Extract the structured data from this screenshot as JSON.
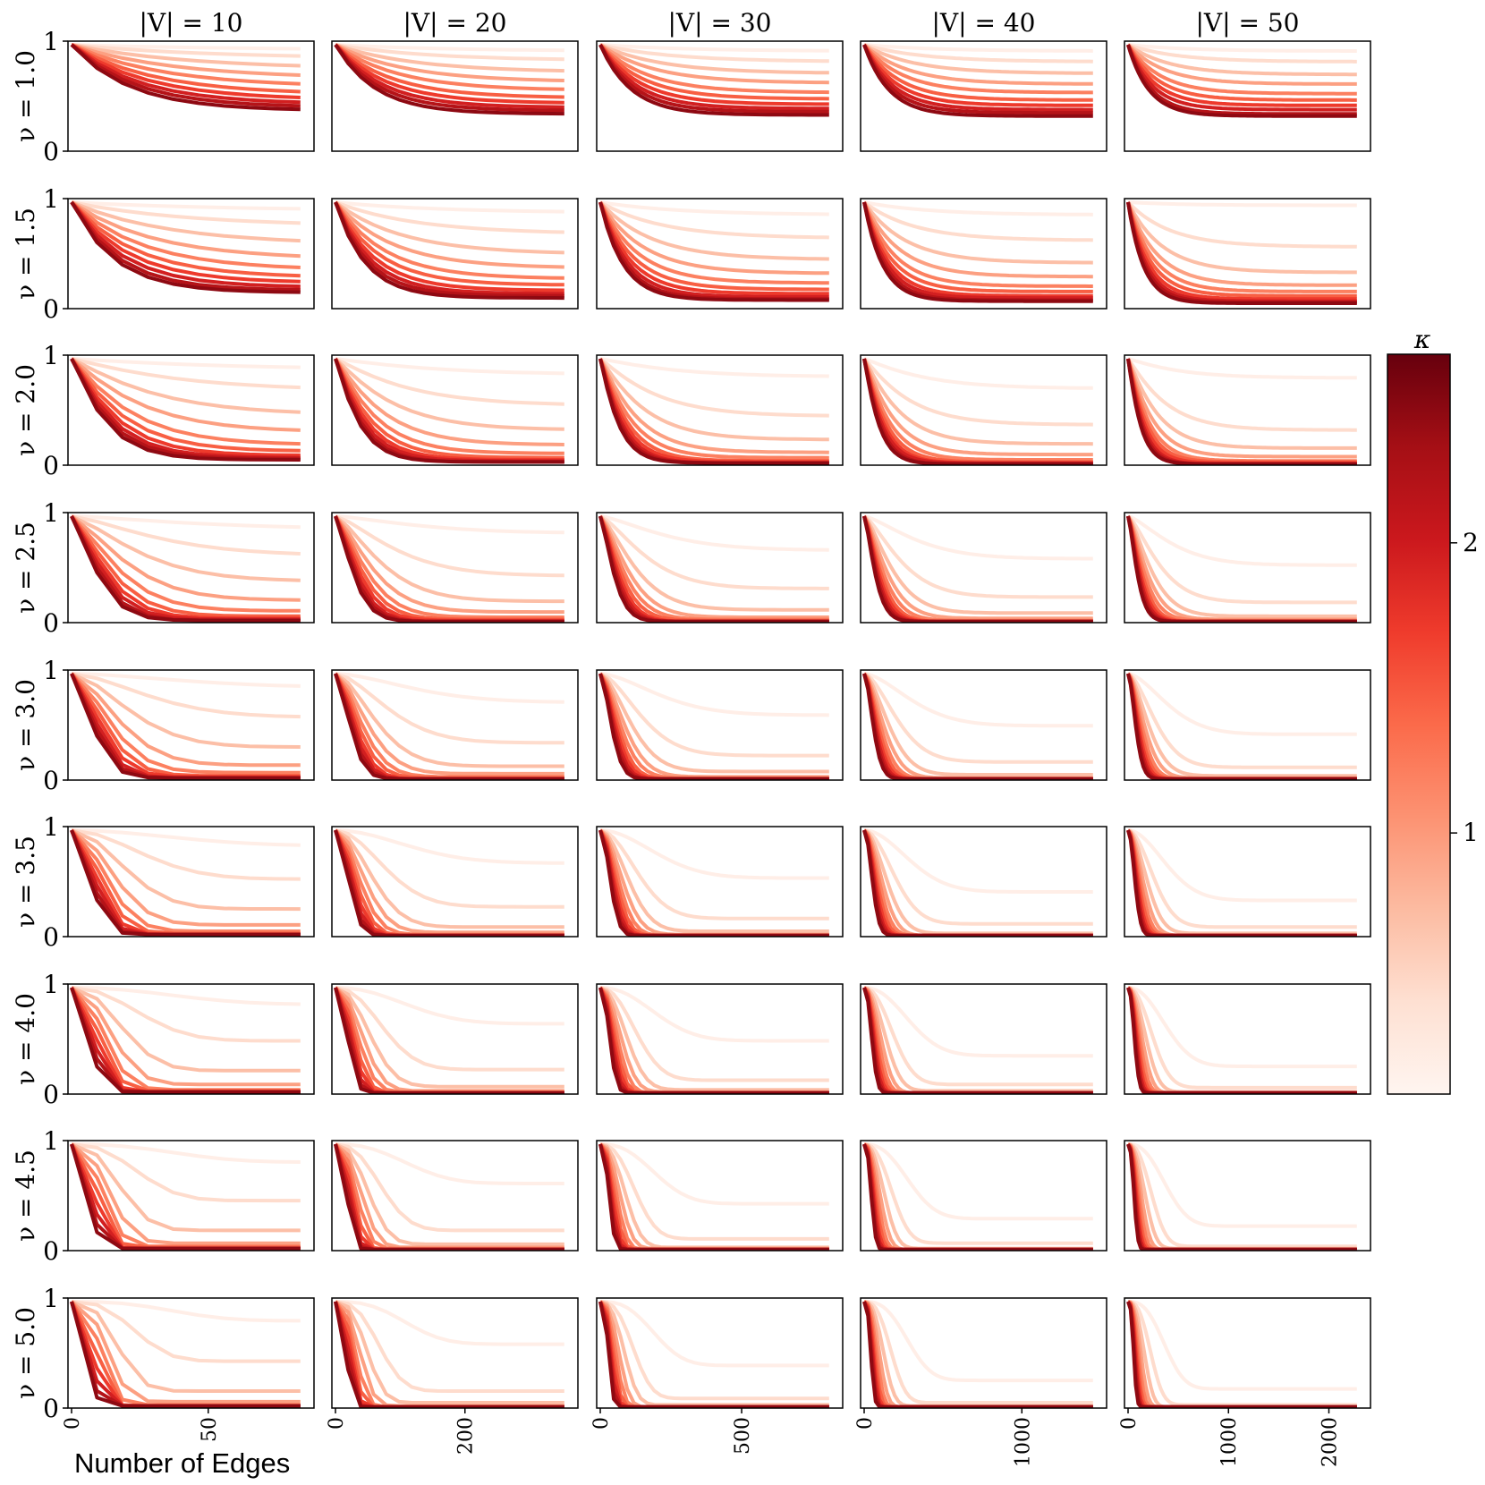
{
  "chart_data": {
    "type": "line",
    "xlabel": "Number of Edges",
    "ylim": [
      0,
      1
    ],
    "y_ticks": [
      "0",
      "1"
    ],
    "grid": false,
    "column_titles": [
      "|V| = 10",
      "|V| = 20",
      "|V| = 30",
      "|V| = 40",
      "|V| = 50"
    ],
    "row_labels": [
      "ν = 1.0",
      "ν = 1.5",
      "ν = 2.0",
      "ν = 2.5",
      "ν = 3.0",
      "ν = 3.5",
      "ν = 4.0",
      "ν = 4.5",
      "ν = 5.0"
    ],
    "nu_values": [
      1.0,
      1.5,
      2.0,
      2.5,
      3.0,
      3.5,
      4.0,
      4.5,
      5.0
    ],
    "columns": [
      {
        "vertices": 10,
        "xlim": [
          0,
          90
        ],
        "x_ticks": [
          0,
          50
        ],
        "x_tick_labels": [
          "0",
          "50"
        ]
      },
      {
        "vertices": 20,
        "xlim": [
          0,
          380
        ],
        "x_ticks": [
          0,
          200
        ],
        "x_tick_labels": [
          "0",
          "200"
        ]
      },
      {
        "vertices": 30,
        "xlim": [
          0,
          870
        ],
        "x_ticks": [
          0,
          500
        ],
        "x_tick_labels": [
          "0",
          "500"
        ]
      },
      {
        "vertices": 40,
        "xlim": [
          0,
          1560
        ],
        "x_ticks": [
          0,
          1000
        ],
        "x_tick_labels": [
          "0",
          "1000"
        ]
      },
      {
        "vertices": 50,
        "xlim": [
          0,
          2450
        ],
        "x_ticks": [
          0,
          1000,
          2000
        ],
        "x_tick_labels": [
          "0",
          "1000",
          "2000"
        ]
      }
    ],
    "kappa_series": [
      0.2,
      0.45,
      0.7,
      0.95,
      1.2,
      1.45,
      1.7,
      1.95,
      2.2,
      2.45
    ],
    "series_note_hidden": "",
    "plateau_values": {
      "rows": [
        [
          [
            0.95,
            0.87,
            0.77,
            0.68,
            0.6,
            0.53,
            0.48,
            0.44,
            0.41,
            0.38
          ],
          [
            0.94,
            0.85,
            0.74,
            0.65,
            0.57,
            0.5,
            0.45,
            0.41,
            0.38,
            0.35
          ],
          [
            0.94,
            0.84,
            0.73,
            0.64,
            0.55,
            0.49,
            0.44,
            0.4,
            0.37,
            0.34
          ],
          [
            0.94,
            0.84,
            0.73,
            0.63,
            0.55,
            0.48,
            0.43,
            0.39,
            0.36,
            0.33
          ],
          [
            0.94,
            0.84,
            0.72,
            0.63,
            0.54,
            0.48,
            0.43,
            0.39,
            0.35,
            0.33
          ]
        ],
        [
          [
            0.92,
            0.77,
            0.6,
            0.46,
            0.36,
            0.29,
            0.24,
            0.2,
            0.17,
            0.15
          ],
          [
            0.9,
            0.7,
            0.51,
            0.38,
            0.28,
            0.22,
            0.17,
            0.14,
            0.12,
            0.1
          ],
          [
            0.88,
            0.66,
            0.46,
            0.33,
            0.24,
            0.18,
            0.14,
            0.11,
            0.09,
            0.08
          ],
          [
            0.88,
            0.64,
            0.43,
            0.3,
            0.21,
            0.16,
            0.12,
            0.1,
            0.08,
            0.07
          ],
          [
            0.97,
            0.58,
            0.34,
            0.22,
            0.16,
            0.12,
            0.09,
            0.07,
            0.06,
            0.05
          ]
        ],
        [
          [
            0.9,
            0.7,
            0.47,
            0.31,
            0.19,
            0.13,
            0.09,
            0.07,
            0.06,
            0.05
          ],
          [
            0.85,
            0.56,
            0.33,
            0.19,
            0.11,
            0.07,
            0.05,
            0.04,
            0.03,
            0.03
          ],
          [
            0.83,
            0.46,
            0.24,
            0.12,
            0.07,
            0.04,
            0.03,
            0.02,
            0.02,
            0.02
          ],
          [
            0.72,
            0.38,
            0.2,
            0.1,
            0.05,
            0.03,
            0.02,
            0.02,
            0.01,
            0.01
          ],
          [
            0.82,
            0.33,
            0.16,
            0.08,
            0.04,
            0.03,
            0.02,
            0.01,
            0.01,
            0.01
          ]
        ],
        [
          [
            0.88,
            0.63,
            0.39,
            0.21,
            0.11,
            0.06,
            0.04,
            0.03,
            0.02,
            0.02
          ],
          [
            0.84,
            0.44,
            0.2,
            0.1,
            0.05,
            0.03,
            0.02,
            0.01,
            0.01,
            0.01
          ],
          [
            0.68,
            0.32,
            0.12,
            0.05,
            0.03,
            0.02,
            0.01,
            0.01,
            0.01,
            0.01
          ],
          [
            0.6,
            0.24,
            0.09,
            0.04,
            0.02,
            0.01,
            0.01,
            0.01,
            0.01,
            0.01
          ],
          [
            0.54,
            0.19,
            0.06,
            0.03,
            0.02,
            0.01,
            0.01,
            0.01,
            0.01,
            0.01
          ]
        ],
        [
          [
            0.87,
            0.59,
            0.31,
            0.14,
            0.07,
            0.04,
            0.03,
            0.02,
            0.02,
            0.02
          ],
          [
            0.73,
            0.35,
            0.13,
            0.06,
            0.03,
            0.02,
            0.01,
            0.01,
            0.01,
            0.01
          ],
          [
            0.61,
            0.23,
            0.08,
            0.03,
            0.02,
            0.01,
            0.01,
            0.01,
            0.01,
            0.01
          ],
          [
            0.51,
            0.17,
            0.05,
            0.02,
            0.01,
            0.01,
            0.01,
            0.01,
            0.01,
            0.01
          ],
          [
            0.43,
            0.12,
            0.04,
            0.02,
            0.01,
            0.01,
            0.01,
            0.01,
            0.01,
            0.01
          ]
        ],
        [
          [
            0.85,
            0.54,
            0.26,
            0.11,
            0.05,
            0.03,
            0.02,
            0.02,
            0.02,
            0.02
          ],
          [
            0.69,
            0.28,
            0.09,
            0.04,
            0.02,
            0.01,
            0.01,
            0.01,
            0.01,
            0.01
          ],
          [
            0.55,
            0.17,
            0.05,
            0.02,
            0.01,
            0.01,
            0.01,
            0.01,
            0.01,
            0.01
          ],
          [
            0.42,
            0.12,
            0.03,
            0.01,
            0.01,
            0.01,
            0.01,
            0.01,
            0.01,
            0.01
          ],
          [
            0.34,
            0.09,
            0.03,
            0.01,
            0.01,
            0.01,
            0.01,
            0.01,
            0.01,
            0.01
          ]
        ],
        [
          [
            0.84,
            0.5,
            0.22,
            0.09,
            0.04,
            0.03,
            0.02,
            0.02,
            0.02,
            0.02
          ],
          [
            0.66,
            0.23,
            0.07,
            0.03,
            0.02,
            0.01,
            0.01,
            0.01,
            0.01,
            0.01
          ],
          [
            0.5,
            0.13,
            0.04,
            0.02,
            0.01,
            0.01,
            0.01,
            0.01,
            0.01,
            0.01
          ],
          [
            0.36,
            0.09,
            0.03,
            0.01,
            0.01,
            0.01,
            0.01,
            0.01,
            0.01,
            0.01
          ],
          [
            0.26,
            0.06,
            0.02,
            0.01,
            0.01,
            0.01,
            0.01,
            0.01,
            0.01,
            0.01
          ]
        ],
        [
          [
            0.83,
            0.47,
            0.19,
            0.07,
            0.04,
            0.03,
            0.02,
            0.02,
            0.02,
            0.02
          ],
          [
            0.63,
            0.19,
            0.06,
            0.03,
            0.02,
            0.01,
            0.01,
            0.01,
            0.01,
            0.01
          ],
          [
            0.44,
            0.11,
            0.03,
            0.02,
            0.01,
            0.01,
            0.01,
            0.01,
            0.01,
            0.01
          ],
          [
            0.3,
            0.07,
            0.02,
            0.01,
            0.01,
            0.01,
            0.01,
            0.01,
            0.01,
            0.01
          ],
          [
            0.23,
            0.04,
            0.02,
            0.01,
            0.01,
            0.01,
            0.01,
            0.01,
            0.01,
            0.01
          ]
        ],
        [
          [
            0.82,
            0.44,
            0.16,
            0.06,
            0.03,
            0.02,
            0.02,
            0.02,
            0.02,
            0.02
          ],
          [
            0.6,
            0.16,
            0.05,
            0.02,
            0.01,
            0.01,
            0.01,
            0.01,
            0.01,
            0.01
          ],
          [
            0.4,
            0.09,
            0.03,
            0.01,
            0.01,
            0.01,
            0.01,
            0.01,
            0.01,
            0.01
          ],
          [
            0.26,
            0.05,
            0.02,
            0.01,
            0.01,
            0.01,
            0.01,
            0.01,
            0.01,
            0.01
          ],
          [
            0.18,
            0.03,
            0.01,
            0.01,
            0.01,
            0.01,
            0.01,
            0.01,
            0.01,
            0.01
          ]
        ]
      ]
    },
    "colorbar": {
      "label": "κ",
      "range": [
        0.1,
        2.65
      ],
      "ticks": [
        1,
        2
      ],
      "tick_labels": [
        "1",
        "2"
      ],
      "colormap": "Reds",
      "colors": [
        "#fff5f0",
        "#fee0d2",
        "#fcbba1",
        "#fc9272",
        "#fb6a4a",
        "#ef3b2c",
        "#cb181d",
        "#a50f15",
        "#67000d"
      ]
    },
    "legend_placement": "colorbar right",
    "line_width": 4
  }
}
